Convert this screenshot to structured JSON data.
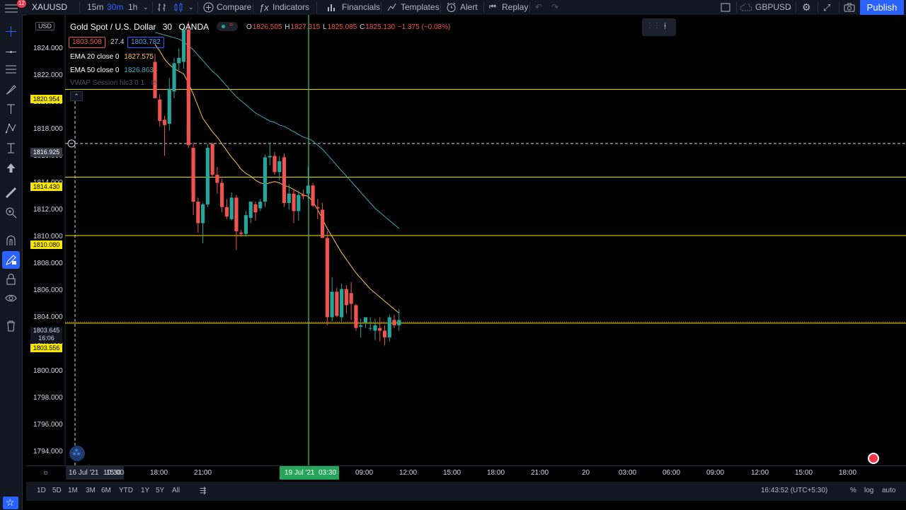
{
  "toolbar": {
    "symbol": "XAUUSD",
    "intervals": [
      "15m",
      "30m",
      "1h"
    ],
    "active_interval": "30m",
    "compare": "Compare",
    "indicators": "Indicators",
    "financials": "Financials",
    "templates": "Templates",
    "alert": "Alert",
    "replay": "Replay",
    "currency_pair": "GBPUSD",
    "publish": "Publish",
    "notification_count": "12"
  },
  "legend": {
    "currency": "USD",
    "title": "Gold Spot / U.S. Dollar",
    "interval": "30",
    "source": "OANDA",
    "open_label": "O",
    "open": "1826.505",
    "high_label": "H",
    "high": "1827.315",
    "low_label": "L",
    "low": "1825.085",
    "close_label": "C",
    "close": "1825.130",
    "change": "−1.375 (−0.08%)",
    "bid": "1803.508",
    "spread": "27.4",
    "ask": "1803.782",
    "ema20": "EMA 20 close 0",
    "ema20_value": "1827.575",
    "ema50": "EMA 50 close 0",
    "ema50_value": "1826.863",
    "vwap": "VWAP Session hlc3 0 1"
  },
  "price_axis": [
    "1824.000",
    "1822.000",
    "1820.000",
    "1818.000",
    "1816.000",
    "1814.000",
    "1812.000",
    "1810.000",
    "1808.000",
    "1806.000",
    "1804.000",
    "1802.000",
    "1800.000",
    "1798.000",
    "1796.000",
    "1794.000"
  ],
  "price_lines": {
    "l1": "1820.954",
    "l2": "1814.430",
    "l3": "1810.080",
    "l4": "1803.556",
    "crosshair": "1816.925",
    "current": "1803.645",
    "countdown": "16:06"
  },
  "time_axis": {
    "start": "16 Jul '21",
    "start_time": "10:30",
    "labels": [
      "15:00",
      "18:00",
      "21:00",
      "09:00",
      "12:00",
      "15:00",
      "18:00",
      "21:00",
      "20",
      "03:00",
      "06:00",
      "09:00",
      "12:00",
      "15:00",
      "18:00"
    ],
    "crosshair_date": "19 Jul '21",
    "crosshair_time": "03:30"
  },
  "bottom": {
    "ranges": [
      "1D",
      "5D",
      "1M",
      "3M",
      "6M",
      "YTD",
      "1Y",
      "5Y",
      "All"
    ],
    "clock": "16:43:52 (UTC+5:30)",
    "percent": "%",
    "log": "log",
    "auto": "auto"
  },
  "colors": {
    "up": "#26a69a",
    "down": "#ef5350",
    "ema20": "#f7c548",
    "ema50": "#3fa7b5",
    "hline": "#f7e600",
    "crosshair_v": "#2ecc71"
  },
  "chart_data": {
    "type": "candlestick",
    "y_range": [
      1793.5,
      1826.5
    ],
    "bars": [
      {
        "o": 1823.0,
        "h": 1823.6,
        "l": 1820.3,
        "c": 1820.3
      },
      {
        "o": 1820.2,
        "h": 1820.6,
        "l": 1818.2,
        "c": 1818.6
      },
      {
        "o": 1818.7,
        "h": 1819.0,
        "l": 1816.0,
        "c": 1818.3
      },
      {
        "o": 1818.4,
        "h": 1821.8,
        "l": 1817.9,
        "c": 1821.0
      },
      {
        "o": 1820.8,
        "h": 1823.3,
        "l": 1820.3,
        "c": 1822.9
      },
      {
        "o": 1822.9,
        "h": 1824.0,
        "l": 1822.4,
        "c": 1823.3
      },
      {
        "o": 1823.0,
        "h": 1825.6,
        "l": 1822.5,
        "c": 1825.4
      },
      {
        "o": 1825.4,
        "h": 1826.0,
        "l": 1816.6,
        "c": 1816.8
      },
      {
        "o": 1816.6,
        "h": 1817.0,
        "l": 1811.6,
        "c": 1812.6
      },
      {
        "o": 1812.6,
        "h": 1812.9,
        "l": 1810.3,
        "c": 1811.0
      },
      {
        "o": 1811.0,
        "h": 1812.5,
        "l": 1809.5,
        "c": 1812.4
      },
      {
        "o": 1812.4,
        "h": 1816.9,
        "l": 1812.2,
        "c": 1816.6
      },
      {
        "o": 1816.9,
        "h": 1817.0,
        "l": 1814.5,
        "c": 1814.6
      },
      {
        "o": 1814.6,
        "h": 1815.2,
        "l": 1813.2,
        "c": 1814.0
      },
      {
        "o": 1814.0,
        "h": 1814.3,
        "l": 1811.8,
        "c": 1812.2
      },
      {
        "o": 1812.2,
        "h": 1812.8,
        "l": 1811.3,
        "c": 1811.5
      },
      {
        "o": 1811.3,
        "h": 1813.3,
        "l": 1811.2,
        "c": 1812.9
      },
      {
        "o": 1812.9,
        "h": 1813.1,
        "l": 1809.0,
        "c": 1810.4
      },
      {
        "o": 1810.3,
        "h": 1810.5,
        "l": 1810.0,
        "c": 1810.2
      },
      {
        "o": 1810.2,
        "h": 1811.9,
        "l": 1810.0,
        "c": 1811.6
      },
      {
        "o": 1811.4,
        "h": 1812.6,
        "l": 1811.0,
        "c": 1812.6
      },
      {
        "o": 1812.4,
        "h": 1812.6,
        "l": 1811.2,
        "c": 1811.8
      },
      {
        "o": 1812.1,
        "h": 1812.8,
        "l": 1811.9,
        "c": 1812.6
      },
      {
        "o": 1812.6,
        "h": 1816.1,
        "l": 1812.2,
        "c": 1815.9
      },
      {
        "o": 1815.9,
        "h": 1817.0,
        "l": 1815.3,
        "c": 1816.0
      },
      {
        "o": 1816.0,
        "h": 1816.3,
        "l": 1814.6,
        "c": 1814.8
      },
      {
        "o": 1814.8,
        "h": 1816.0,
        "l": 1814.2,
        "c": 1815.6
      },
      {
        "o": 1815.9,
        "h": 1816.2,
        "l": 1812.2,
        "c": 1812.5
      },
      {
        "o": 1812.5,
        "h": 1813.9,
        "l": 1812.0,
        "c": 1813.2
      },
      {
        "o": 1813.2,
        "h": 1813.5,
        "l": 1811.0,
        "c": 1811.9
      },
      {
        "o": 1811.9,
        "h": 1813.4,
        "l": 1811.2,
        "c": 1813.1
      },
      {
        "o": 1813.1,
        "h": 1813.5,
        "l": 1812.8,
        "c": 1813.0
      },
      {
        "o": 1813.2,
        "h": 1815.2,
        "l": 1812.8,
        "c": 1813.8
      },
      {
        "o": 1813.8,
        "h": 1814.0,
        "l": 1812.2,
        "c": 1812.3
      },
      {
        "o": 1812.2,
        "h": 1812.8,
        "l": 1811.3,
        "c": 1812.1
      },
      {
        "o": 1812.0,
        "h": 1812.5,
        "l": 1810.0,
        "c": 1809.9
      },
      {
        "o": 1809.9,
        "h": 1810.4,
        "l": 1803.4,
        "c": 1804.0
      },
      {
        "o": 1804.0,
        "h": 1807.0,
        "l": 1803.7,
        "c": 1805.9
      },
      {
        "o": 1805.9,
        "h": 1806.2,
        "l": 1804.0,
        "c": 1804.1
      },
      {
        "o": 1804.0,
        "h": 1806.5,
        "l": 1803.7,
        "c": 1806.1
      },
      {
        "o": 1806.1,
        "h": 1806.4,
        "l": 1804.3,
        "c": 1804.9
      },
      {
        "o": 1805.8,
        "h": 1806.6,
        "l": 1803.8,
        "c": 1805.0
      },
      {
        "o": 1804.9,
        "h": 1805.0,
        "l": 1803.0,
        "c": 1803.2
      },
      {
        "o": 1803.3,
        "h": 1803.9,
        "l": 1802.5,
        "c": 1803.4
      },
      {
        "o": 1803.6,
        "h": 1804.0,
        "l": 1803.2,
        "c": 1804.0
      },
      {
        "o": 1803.2,
        "h": 1804.0,
        "l": 1803.0,
        "c": 1803.2
      },
      {
        "o": 1803.0,
        "h": 1803.9,
        "l": 1802.3,
        "c": 1803.4
      },
      {
        "o": 1803.2,
        "h": 1804.0,
        "l": 1802.2,
        "c": 1803.0
      },
      {
        "o": 1803.0,
        "h": 1803.4,
        "l": 1801.9,
        "c": 1802.5
      },
      {
        "o": 1802.5,
        "h": 1804.2,
        "l": 1802.2,
        "c": 1804.0
      },
      {
        "o": 1803.8,
        "h": 1804.2,
        "l": 1803.2,
        "c": 1803.4
      },
      {
        "o": 1803.4,
        "h": 1804.6,
        "l": 1803.0,
        "c": 1803.8
      }
    ],
    "ema20": [
      1824.3,
      1823.8,
      1823.2,
      1822.8,
      1822.5,
      1822.3,
      1822.1,
      1821.4,
      1820.6,
      1819.7,
      1818.8,
      1818.3,
      1817.8,
      1817.4,
      1816.9,
      1816.4,
      1815.9,
      1815.5,
      1815.0,
      1814.7,
      1814.5,
      1814.2,
      1814.0,
      1813.9,
      1814.0,
      1814.1,
      1814.0,
      1813.8,
      1813.7,
      1813.5,
      1813.3,
      1813.1,
      1813.0,
      1812.6,
      1812.0,
      1811.3,
      1810.6,
      1810.0,
      1809.4,
      1808.8,
      1808.3,
      1807.8,
      1807.3,
      1806.9,
      1806.5,
      1806.1,
      1805.8,
      1805.5,
      1805.2,
      1804.9,
      1804.6,
      1804.3
    ],
    "ema50": [
      1825.2,
      1825.1,
      1825.0,
      1824.9,
      1824.8,
      1824.7,
      1824.5,
      1824.2,
      1823.9,
      1823.5,
      1823.1,
      1822.7,
      1822.3,
      1822.0,
      1821.6,
      1821.2,
      1820.8,
      1820.4,
      1820.1,
      1819.8,
      1819.5,
      1819.2,
      1819.0,
      1818.8,
      1818.6,
      1818.5,
      1818.3,
      1818.2,
      1818.0,
      1817.8,
      1817.6,
      1817.4,
      1817.3,
      1817.1,
      1816.8,
      1816.5,
      1816.1,
      1815.7,
      1815.3,
      1814.9,
      1814.5,
      1814.1,
      1813.7,
      1813.3,
      1812.9,
      1812.5,
      1812.1,
      1811.8,
      1811.5,
      1811.2,
      1810.9,
      1810.6
    ]
  }
}
